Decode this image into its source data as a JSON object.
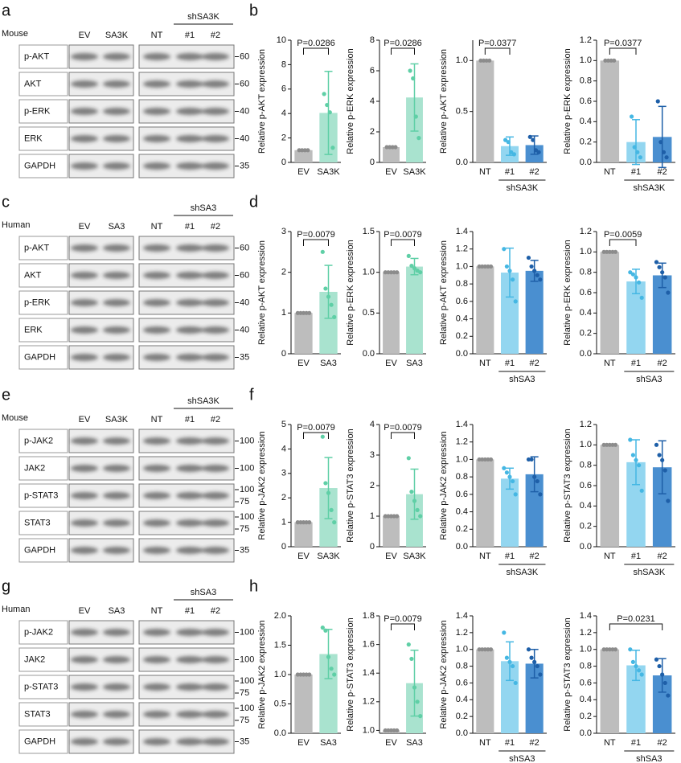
{
  "blots": [
    {
      "label": "a",
      "species": "Mouse",
      "lanes": [
        "EV",
        "SA3K",
        "NT",
        "#1",
        "#2"
      ],
      "group": "shSA3K",
      "rows": [
        "p-AKT",
        "AKT",
        "p-ERK",
        "ERK",
        "GAPDH"
      ],
      "markers": [
        [
          60
        ],
        [
          60
        ],
        [
          40
        ],
        [
          40
        ],
        [
          35
        ]
      ]
    },
    {
      "label": "c",
      "species": "Human",
      "lanes": [
        "EV",
        "SA3",
        "NT",
        "#1",
        "#2"
      ],
      "group": "shSA3",
      "rows": [
        "p-AKT",
        "AKT",
        "p-ERK",
        "ERK",
        "GAPDH"
      ],
      "markers": [
        [
          60
        ],
        [
          60
        ],
        [
          40
        ],
        [
          40
        ],
        [
          35
        ]
      ]
    },
    {
      "label": "e",
      "species": "Mouse",
      "lanes": [
        "EV",
        "SA3K",
        "NT",
        "#1",
        "#2"
      ],
      "group": "shSA3K",
      "rows": [
        "p-JAK2",
        "JAK2",
        "p-STAT3",
        "STAT3",
        "GAPDH"
      ],
      "markers": [
        [
          100
        ],
        [
          100
        ],
        [
          100,
          75
        ],
        [
          100,
          75
        ],
        [
          35
        ]
      ]
    },
    {
      "label": "g",
      "species": "Human",
      "lanes": [
        "EV",
        "SA3",
        "NT",
        "#1",
        "#2"
      ],
      "group": "shSA3",
      "rows": [
        "p-JAK2",
        "JAK2",
        "p-STAT3",
        "STAT3",
        "GAPDH"
      ],
      "markers": [
        [
          100
        ],
        [
          100
        ],
        [
          100,
          75
        ],
        [
          100,
          75
        ],
        [
          35
        ]
      ]
    }
  ],
  "chart_data": [
    {
      "type": "bar",
      "label": "b",
      "ylabel": "Relative p-AKT expression",
      "categories": [
        "EV",
        "SA3K"
      ],
      "values": [
        1,
        4.05
      ],
      "errors": [
        0,
        3.4
      ],
      "points": [
        [
          1,
          1,
          1,
          1
        ],
        [
          5.6,
          4.7,
          4.1,
          1.2
        ]
      ],
      "colors": [
        "#bdbdbd",
        "#a9e3cf"
      ],
      "point_colors": [
        "#8c8c8c",
        "#5fcfa6"
      ],
      "ylim": [
        0,
        10
      ],
      "yticks": [
        0,
        2,
        4,
        6,
        8,
        10
      ],
      "annotation": {
        "text": "P=0.0286",
        "from": "EV",
        "to": "SA3K"
      }
    },
    {
      "type": "bar",
      "ylabel": "Relative p-ERK expression",
      "categories": [
        "EV",
        "SA3K"
      ],
      "values": [
        1,
        4.25
      ],
      "errors": [
        0,
        2.2
      ],
      "points": [
        [
          1,
          1,
          1,
          1
        ],
        [
          6.0,
          5.5,
          3.0,
          1.6
        ]
      ],
      "colors": [
        "#bdbdbd",
        "#a9e3cf"
      ],
      "point_colors": [
        "#8c8c8c",
        "#5fcfa6"
      ],
      "ylim": [
        0,
        8
      ],
      "yticks": [
        0,
        2,
        4,
        6,
        8
      ],
      "annotation": {
        "text": "P=0.0286",
        "from": "EV",
        "to": "SA3K"
      }
    },
    {
      "type": "bar",
      "ylabel": "Relative p-AKT expression",
      "categories": [
        "NT",
        "#1",
        "#2"
      ],
      "group": "shSA3K",
      "values": [
        1,
        0.16,
        0.17
      ],
      "errors": [
        0,
        0.09,
        0.09
      ],
      "points": [
        [
          1,
          1,
          1,
          1
        ],
        [
          0.22,
          0.2,
          0.1,
          0.08
        ],
        [
          0.25,
          0.22,
          0.12,
          0.1
        ]
      ],
      "colors": [
        "#bdbdbd",
        "#93d6f0",
        "#4a8fd0"
      ],
      "point_colors": [
        "#8c8c8c",
        "#45b7e3",
        "#1e5fa8"
      ],
      "ylim": [
        0,
        1.2
      ],
      "yticks": [
        {
          "value": 0,
          "label": "0.0"
        },
        0.5,
        {
          "value": 1,
          "label": "1.0"
        }
      ],
      "annotation": {
        "text": "P=0.0377",
        "from": "NT",
        "to": "#1"
      }
    },
    {
      "type": "bar",
      "ylabel": "Relative p-ERK expression",
      "categories": [
        "NT",
        "#1",
        "#2"
      ],
      "group": "shSA3K",
      "values": [
        1,
        0.2,
        0.25
      ],
      "errors": [
        0,
        0.22,
        0.3
      ],
      "points": [
        [
          1,
          1,
          1,
          1
        ],
        [
          0.45,
          0.15,
          0.1,
          0.05
        ],
        [
          0.6,
          0.2,
          0.1,
          0.05
        ]
      ],
      "colors": [
        "#bdbdbd",
        "#93d6f0",
        "#4a8fd0"
      ],
      "point_colors": [
        "#8c8c8c",
        "#45b7e3",
        "#1e5fa8"
      ],
      "ylim": [
        0,
        1.2
      ],
      "yticks": [
        {
          "value": 0,
          "label": "0.0"
        },
        0.2,
        0.4,
        0.6,
        0.8,
        {
          "value": 1,
          "label": "1.0"
        },
        1.2
      ],
      "annotation": {
        "text": "P=0.0377",
        "from": "NT",
        "to": "#1"
      }
    },
    {
      "type": "bar",
      "label": "d",
      "ylabel": "Relative p-AKT expression",
      "categories": [
        "EV",
        "SA3"
      ],
      "values": [
        1,
        1.52
      ],
      "errors": [
        0,
        0.65
      ],
      "points": [
        [
          1,
          1,
          1,
          1,
          1
        ],
        [
          2.5,
          1.6,
          1.4,
          1.2,
          0.9
        ]
      ],
      "colors": [
        "#bdbdbd",
        "#a9e3cf"
      ],
      "point_colors": [
        "#8c8c8c",
        "#5fcfa6"
      ],
      "ylim": [
        0,
        3
      ],
      "yticks": [
        0,
        1,
        2,
        3
      ],
      "annotation": {
        "text": "P=0.0079",
        "from": "EV",
        "to": "SA3"
      }
    },
    {
      "type": "bar",
      "ylabel": "Relative p-ERK expression",
      "categories": [
        "EV",
        "SA3"
      ],
      "values": [
        1,
        1.07
      ],
      "errors": [
        0,
        0.1
      ],
      "points": [
        [
          1,
          1,
          1,
          1,
          1
        ],
        [
          1.2,
          1.08,
          1.05,
          1.02,
          1.0
        ]
      ],
      "colors": [
        "#bdbdbd",
        "#a9e3cf"
      ],
      "point_colors": [
        "#8c8c8c",
        "#5fcfa6"
      ],
      "ylim": [
        0,
        1.5
      ],
      "yticks": [
        {
          "value": 0,
          "label": "0.0"
        },
        0.5,
        {
          "value": 1,
          "label": "1.0"
        },
        1.5
      ],
      "annotation": {
        "text": "P=0.0079",
        "from": "EV",
        "to": "SA3"
      }
    },
    {
      "type": "bar",
      "ylabel": "Relative p-AKT expression",
      "categories": [
        "NT",
        "#1",
        "#2"
      ],
      "group": "shSA3",
      "values": [
        1,
        0.93,
        0.95
      ],
      "errors": [
        0,
        0.28,
        0.12
      ],
      "points": [
        [
          1,
          1,
          1,
          1,
          1
        ],
        [
          1.2,
          1.0,
          0.95,
          0.85,
          0.6
        ],
        [
          1.1,
          1.0,
          0.95,
          0.9,
          0.85
        ]
      ],
      "colors": [
        "#bdbdbd",
        "#93d6f0",
        "#4a8fd0"
      ],
      "point_colors": [
        "#8c8c8c",
        "#45b7e3",
        "#1e5fa8"
      ],
      "ylim": [
        0,
        1.4
      ],
      "yticks": [
        {
          "value": 0,
          "label": "0.0"
        },
        0.2,
        0.4,
        0.6,
        0.8,
        {
          "value": 1,
          "label": "1.0"
        },
        1.2,
        1.4
      ]
    },
    {
      "type": "bar",
      "ylabel": "Relative p-ERK expression",
      "categories": [
        "NT",
        "#1",
        "#2"
      ],
      "group": "shSA3",
      "values": [
        1,
        0.71,
        0.77
      ],
      "errors": [
        0,
        0.12,
        0.12
      ],
      "points": [
        [
          1,
          1,
          1,
          1,
          1
        ],
        [
          0.8,
          0.78,
          0.75,
          0.7,
          0.55
        ],
        [
          0.9,
          0.85,
          0.8,
          0.75,
          0.6
        ]
      ],
      "colors": [
        "#bdbdbd",
        "#93d6f0",
        "#4a8fd0"
      ],
      "point_colors": [
        "#8c8c8c",
        "#45b7e3",
        "#1e5fa8"
      ],
      "ylim": [
        0,
        1.2
      ],
      "yticks": [
        {
          "value": 0,
          "label": "0.0"
        },
        0.2,
        0.4,
        0.6,
        0.8,
        {
          "value": 1,
          "label": "1.0"
        },
        1.2
      ],
      "annotation": {
        "text": "P=0.0059",
        "from": "NT",
        "to": "#1"
      }
    },
    {
      "type": "bar",
      "label": "f",
      "ylabel": "Relative p-JAK2 expression",
      "categories": [
        "EV",
        "SA3K"
      ],
      "values": [
        1,
        2.4
      ],
      "errors": [
        0,
        1.25
      ],
      "points": [
        [
          1,
          1,
          1,
          1,
          1
        ],
        [
          4.5,
          2.6,
          2.2,
          1.5,
          1.0
        ]
      ],
      "colors": [
        "#bdbdbd",
        "#a9e3cf"
      ],
      "point_colors": [
        "#8c8c8c",
        "#5fcfa6"
      ],
      "ylim": [
        0,
        5
      ],
      "yticks": [
        0,
        1,
        2,
        3,
        4,
        5
      ],
      "annotation": {
        "text": "P=0.0079",
        "from": "EV",
        "to": "SA3K"
      }
    },
    {
      "type": "bar",
      "ylabel": "Relative p-STAT3 expression",
      "categories": [
        "EV",
        "SA3K"
      ],
      "values": [
        1,
        1.72
      ],
      "errors": [
        0,
        0.82
      ],
      "points": [
        [
          1,
          1,
          1,
          1,
          1
        ],
        [
          2.9,
          1.8,
          1.5,
          1.2,
          1.0
        ]
      ],
      "colors": [
        "#bdbdbd",
        "#a9e3cf"
      ],
      "point_colors": [
        "#8c8c8c",
        "#5fcfa6"
      ],
      "ylim": [
        0,
        4
      ],
      "yticks": [
        0,
        1,
        2,
        3,
        4
      ],
      "annotation": {
        "text": "P=0.0079",
        "from": "EV",
        "to": "SA3K"
      }
    },
    {
      "type": "bar",
      "ylabel": "Relative p-JAK2 expression",
      "categories": [
        "NT",
        "#1",
        "#2"
      ],
      "group": "shSA3K",
      "values": [
        1,
        0.78,
        0.83
      ],
      "errors": [
        0,
        0.12,
        0.2
      ],
      "points": [
        [
          1,
          1,
          1,
          1,
          1
        ],
        [
          0.9,
          0.85,
          0.8,
          0.75,
          0.6
        ],
        [
          1.0,
          1.0,
          0.8,
          0.75,
          0.6
        ]
      ],
      "colors": [
        "#bdbdbd",
        "#93d6f0",
        "#4a8fd0"
      ],
      "point_colors": [
        "#8c8c8c",
        "#45b7e3",
        "#1e5fa8"
      ],
      "ylim": [
        0,
        1.4
      ],
      "yticks": [
        {
          "value": 0,
          "label": "0.0"
        },
        0.2,
        0.4,
        0.6,
        0.8,
        {
          "value": 1,
          "label": "1.0"
        },
        1.2,
        1.4
      ]
    },
    {
      "type": "bar",
      "ylabel": "Relative p-STAT3 expression",
      "categories": [
        "NT",
        "#1",
        "#2"
      ],
      "group": "shSA3K",
      "values": [
        1,
        0.83,
        0.78
      ],
      "errors": [
        0,
        0.22,
        0.26
      ],
      "points": [
        [
          1,
          1,
          1,
          1,
          1
        ],
        [
          1.05,
          0.9,
          0.85,
          0.8,
          0.55
        ],
        [
          1.0,
          0.9,
          0.85,
          0.75,
          0.45
        ]
      ],
      "colors": [
        "#bdbdbd",
        "#93d6f0",
        "#4a8fd0"
      ],
      "point_colors": [
        "#8c8c8c",
        "#45b7e3",
        "#1e5fa8"
      ],
      "ylim": [
        0,
        1.2
      ],
      "yticks": [
        {
          "value": 0,
          "label": "0.0"
        },
        0.2,
        0.4,
        0.6,
        0.8,
        {
          "value": 1,
          "label": "1.0"
        },
        1.2
      ]
    },
    {
      "type": "bar",
      "label": "h",
      "ylabel": "Relative p-JAK2 expression",
      "categories": [
        "EV",
        "SA3"
      ],
      "values": [
        1,
        1.35
      ],
      "errors": [
        0,
        0.42
      ],
      "points": [
        [
          1,
          1,
          1,
          1,
          1
        ],
        [
          1.8,
          1.75,
          1.3,
          1.1,
          1.0
        ]
      ],
      "colors": [
        "#bdbdbd",
        "#a9e3cf"
      ],
      "point_colors": [
        "#8c8c8c",
        "#5fcfa6"
      ],
      "ylim": [
        0,
        2
      ],
      "yticks": [
        {
          "value": 0,
          "label": "0.0"
        },
        0.5,
        {
          "value": 1,
          "label": "1.0"
        },
        1.5,
        {
          "value": 2,
          "label": "2.0"
        }
      ]
    },
    {
      "type": "bar",
      "ylabel": "Relative p-STAT3 expression",
      "categories": [
        "EV",
        "SA3"
      ],
      "values": [
        1,
        1.33
      ],
      "errors": [
        0,
        0.23
      ],
      "points": [
        [
          1,
          1,
          1,
          1,
          1
        ],
        [
          1.6,
          1.5,
          1.3,
          1.2,
          1.1
        ]
      ],
      "colors": [
        "#bdbdbd",
        "#a9e3cf"
      ],
      "point_colors": [
        "#8c8c8c",
        "#5fcfa6"
      ],
      "ylim": [
        0.98,
        1.8
      ],
      "yticks": [
        {
          "value": 1,
          "label": "1.0"
        },
        1.2,
        1.4,
        1.6,
        1.8
      ],
      "annotation": {
        "text": "P=0.0079",
        "from": "EV",
        "to": "SA3"
      }
    },
    {
      "type": "bar",
      "ylabel": "Relative p-JAK2 expression",
      "categories": [
        "NT",
        "#1",
        "#2"
      ],
      "group": "shSA3",
      "values": [
        1,
        0.86,
        0.83
      ],
      "errors": [
        0,
        0.23,
        0.17
      ],
      "points": [
        [
          1,
          1,
          1,
          1,
          1
        ],
        [
          1.2,
          0.9,
          0.85,
          0.8,
          0.6
        ],
        [
          1.0,
          0.9,
          0.85,
          0.8,
          0.7
        ]
      ],
      "colors": [
        "#bdbdbd",
        "#93d6f0",
        "#4a8fd0"
      ],
      "point_colors": [
        "#8c8c8c",
        "#45b7e3",
        "#1e5fa8"
      ],
      "ylim": [
        0,
        1.4
      ],
      "yticks": [
        {
          "value": 0,
          "label": "0.0"
        },
        0.2,
        0.4,
        0.6,
        0.8,
        {
          "value": 1,
          "label": "1.0"
        },
        1.2,
        1.4
      ]
    },
    {
      "type": "bar",
      "ylabel": "Relative p-STAT3 expression",
      "categories": [
        "NT",
        "#1",
        "#2"
      ],
      "group": "shSA3",
      "values": [
        1,
        0.81,
        0.69
      ],
      "errors": [
        0,
        0.18,
        0.2
      ],
      "points": [
        [
          1,
          1,
          1,
          1,
          1
        ],
        [
          1.0,
          0.85,
          0.8,
          0.75,
          0.7
        ],
        [
          0.88,
          0.8,
          0.7,
          0.6,
          0.45
        ]
      ],
      "colors": [
        "#bdbdbd",
        "#93d6f0",
        "#4a8fd0"
      ],
      "point_colors": [
        "#8c8c8c",
        "#45b7e3",
        "#1e5fa8"
      ],
      "ylim": [
        0,
        1.4
      ],
      "yticks": [
        {
          "value": 0,
          "label": "0.0"
        },
        0.2,
        0.4,
        0.6,
        0.8,
        {
          "value": 1,
          "label": "1.0"
        },
        1.2,
        1.4
      ],
      "annotation": {
        "text": "P=0.0231",
        "from": "NT",
        "to": "#2"
      }
    }
  ]
}
